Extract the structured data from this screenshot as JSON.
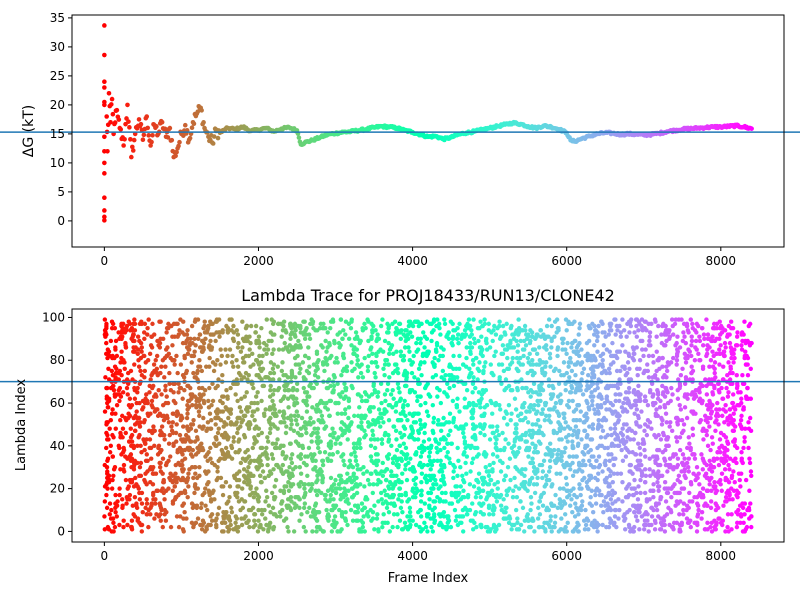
{
  "chart_data": [
    {
      "type": "scatter",
      "title": "",
      "xlabel": "",
      "ylabel": "ΔG (kT)",
      "xlim": [
        -420,
        8820
      ],
      "ylim": [
        -4.5,
        35.5
      ],
      "xticks": [
        0,
        2000,
        4000,
        6000,
        8000
      ],
      "xtick_labels": [
        "0",
        "2000",
        "4000",
        "6000",
        "8000"
      ],
      "yticks": [
        0,
        5,
        10,
        15,
        20,
        25,
        30,
        35
      ],
      "ytick_labels": [
        "0",
        "5",
        "10",
        "15",
        "20",
        "25",
        "30",
        "35"
      ],
      "hline": 15.3,
      "hline_color": "#1f77b4",
      "colormap": "rainbow (red at frame 0 → violet at frame 8400)",
      "series": [
        {
          "x": [
            0,
            0,
            0,
            0,
            0,
            0,
            0,
            0,
            0,
            0,
            0,
            0,
            0,
            0,
            30,
            40,
            60,
            80,
            100,
            120,
            150,
            200,
            250,
            300,
            350,
            400,
            450,
            500,
            550,
            600,
            650,
            700,
            750,
            800,
            850,
            900,
            950,
            1000,
            1050,
            1100,
            1150,
            1200,
            1250,
            1300,
            1350,
            1400,
            1450,
            1500,
            1600,
            1700,
            1800,
            1900,
            2000,
            2100,
            2200,
            2300,
            2400,
            2500,
            2550,
            2600,
            2700,
            2800,
            2900,
            3000,
            3100,
            3200,
            3300,
            3400,
            3500,
            3600,
            3700,
            3800,
            3900,
            4000,
            4100,
            4200,
            4300,
            4400,
            4500,
            4600,
            4700,
            4800,
            4900,
            5000,
            5100,
            5200,
            5300,
            5400,
            5500,
            5600,
            5700,
            5800,
            5900,
            6000,
            6050,
            6100,
            6200,
            6300,
            6400,
            6500,
            6600,
            6700,
            6800,
            6900,
            7000,
            7100,
            7200,
            7300,
            7400,
            7500,
            7600,
            7700,
            7800,
            7900,
            8000,
            8100,
            8200,
            8300,
            8400
          ],
          "y": [
            33.7,
            28.6,
            24,
            23,
            20.5,
            20,
            14.5,
            12,
            10,
            8.2,
            4,
            1.8,
            0.7,
            0.1,
            18,
            12,
            22,
            17,
            21,
            15,
            19,
            16,
            13,
            20,
            11,
            15,
            17.5,
            14,
            18,
            13,
            16.5,
            15,
            17,
            14.5,
            16,
            11,
            12.5,
            15,
            16.5,
            14,
            17,
            18.5,
            19.5,
            16,
            14.5,
            13.5,
            15.5,
            15.2,
            16,
            15.8,
            16.2,
            15.5,
            15.7,
            16,
            15.4,
            15.9,
            16.1,
            15.6,
            13.2,
            13.5,
            13.9,
            14.4,
            14.9,
            15.1,
            15.3,
            15.4,
            15.6,
            15.8,
            16.1,
            16.3,
            16.2,
            16,
            15.6,
            15.3,
            14.9,
            14.5,
            14.6,
            14.1,
            14.4,
            14.9,
            15.2,
            15.4,
            15.7,
            16,
            16.3,
            16.6,
            16.9,
            16.7,
            16.3,
            16,
            16.4,
            16.2,
            15.8,
            15.2,
            13.9,
            13.7,
            14.2,
            14.6,
            15,
            15.2,
            15.1,
            14.9,
            15,
            14.9,
            14.8,
            14.9,
            15.1,
            15.4,
            15.6,
            15.8,
            15.9,
            16,
            16.1,
            16.2,
            16.2,
            16.3,
            16.4,
            16.2,
            15.9
          ]
        }
      ]
    },
    {
      "type": "scatter",
      "title": "Lambda Trace for PROJ18433/RUN13/CLONE42",
      "xlabel": "Frame Index",
      "ylabel": "Lambda Index",
      "xlim": [
        -420,
        8820
      ],
      "ylim": [
        -4.95,
        103.95
      ],
      "xticks": [
        0,
        2000,
        4000,
        6000,
        8000
      ],
      "xtick_labels": [
        "0",
        "2000",
        "4000",
        "6000",
        "8000"
      ],
      "yticks": [
        0,
        20,
        40,
        60,
        80,
        100
      ],
      "ytick_labels": [
        "0",
        "20",
        "40",
        "60",
        "80",
        "100"
      ],
      "hline": 70,
      "hline_color": "#1f77b4",
      "colormap": "rainbow (red at frame 0 → violet at frame 8400)",
      "series": [
        {
          "description_values": "Dense scatter of lambda index (0–99) for every frame 0–8400; values span the full 0–99 range throughout",
          "x_range": [
            0,
            8400
          ],
          "y_range": [
            0,
            99
          ]
        }
      ]
    }
  ]
}
